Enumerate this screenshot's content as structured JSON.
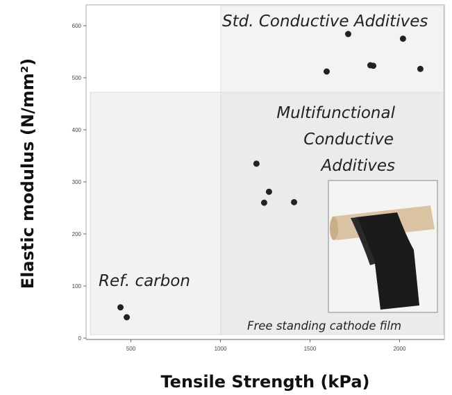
{
  "chart_data": {
    "type": "scatter",
    "xlabel": "Tensile Strength (kPa)",
    "ylabel": "Elastic modulus (N/mm²)",
    "x": [
      442,
      477,
      1201,
      1271,
      1244,
      1411,
      1593,
      1713,
      1837,
      1853,
      2019,
      2116
    ],
    "values": [
      59,
      40,
      335,
      281,
      260,
      261,
      512,
      584,
      524,
      523,
      575,
      517
    ],
    "color": "#222222",
    "xlim": [
      250,
      2250
    ],
    "xticks": [
      500,
      1000,
      1500,
      2000
    ],
    "ylim": [
      0,
      640
    ],
    "yticks": [
      0,
      100,
      200,
      300,
      400,
      500,
      600
    ],
    "annotations": [
      {
        "lines": [
          "Std. Conductive Additives"
        ]
      },
      {
        "lines": [
          "Multifunctional",
          "Conductive",
          "Additives"
        ]
      },
      {
        "lines": [
          "Ref. carbon"
        ]
      },
      {
        "lines": [
          "Free standing cathode film"
        ]
      }
    ]
  }
}
